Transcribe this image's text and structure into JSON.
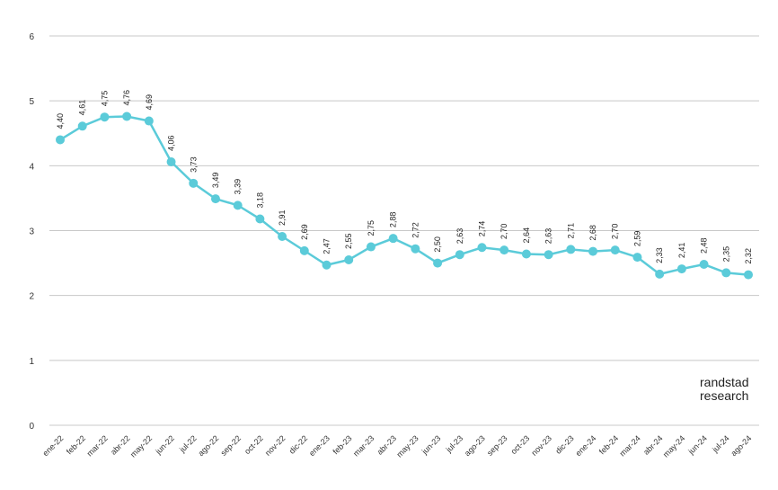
{
  "chart_data": {
    "type": "line",
    "title": "",
    "xlabel": "",
    "ylabel": "",
    "ylim": [
      0,
      6
    ],
    "yticks": [
      "0",
      "1",
      "2",
      "3",
      "4",
      "5",
      "6"
    ],
    "grid": true,
    "categories": [
      "ene-22",
      "feb-22",
      "mar-22",
      "abr-22",
      "may-22",
      "jun-22",
      "jul-22",
      "ago-22",
      "sep-22",
      "oct-22",
      "nov-22",
      "dic-22",
      "ene-23",
      "feb-23",
      "mar-23",
      "abr-23",
      "may-23",
      "jun-23",
      "jul-23",
      "ago-23",
      "sep-23",
      "oct-23",
      "nov-23",
      "dic-23",
      "ene-24",
      "feb-24",
      "mar-24",
      "abr-24",
      "may-24",
      "jun-24",
      "jul-24",
      "ago-24"
    ],
    "series": [
      {
        "name": "",
        "color": "#5bcbd9",
        "values": [
          4.4,
          4.61,
          4.75,
          4.76,
          4.69,
          4.06,
          3.73,
          3.49,
          3.39,
          3.18,
          2.91,
          2.69,
          2.47,
          2.55,
          2.75,
          2.88,
          2.72,
          2.5,
          2.63,
          2.74,
          2.7,
          2.64,
          2.63,
          2.71,
          2.68,
          2.7,
          2.59,
          2.33,
          2.41,
          2.48,
          2.35,
          2.32
        ]
      }
    ]
  },
  "logo": {
    "line1": "randstad",
    "line2": "research"
  }
}
